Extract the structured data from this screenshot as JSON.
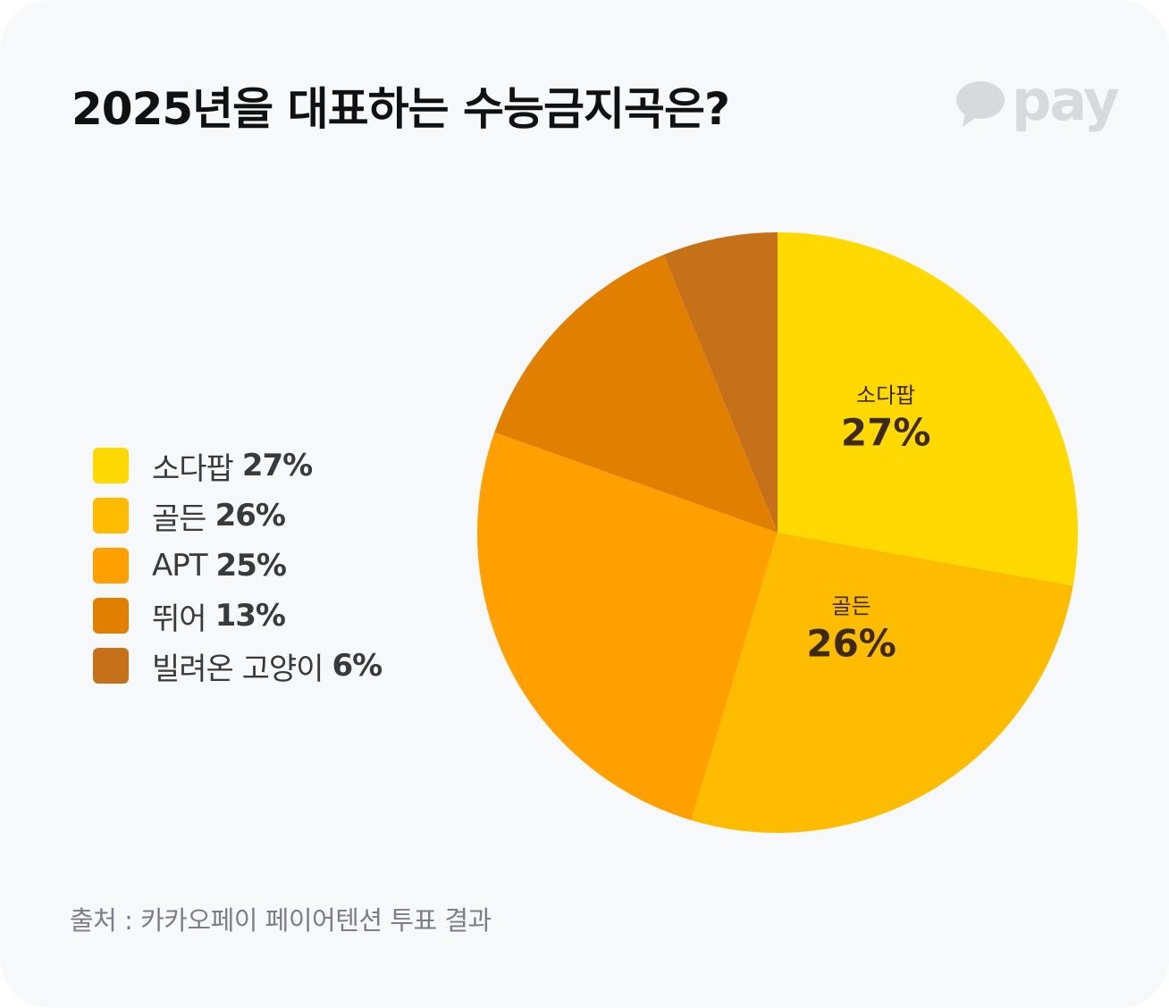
{
  "title": "2025년을 대표하는 수능금지곡은?",
  "logo": {
    "text": "pay",
    "icon": "speech-bubble-icon"
  },
  "source": "출처 : 카카오페이 페이어텐션 투표 결과",
  "colors": {
    "background": "#f7f8fa",
    "logo": "#d7d9dd"
  },
  "legend": [
    {
      "label": "소다팝",
      "value": "27%",
      "color": "#FFD900"
    },
    {
      "label": "골든",
      "value": "26%",
      "color": "#FDBC00"
    },
    {
      "label": "APT",
      "value": "25%",
      "color": "#FFA000"
    },
    {
      "label": "뛰어",
      "value": "13%",
      "color": "#E17F00"
    },
    {
      "label": "빌려온 고양이",
      "value": "6%",
      "color": "#C5711A"
    }
  ],
  "chart_data": {
    "type": "pie",
    "title": "2025년을 대표하는 수능금지곡은?",
    "categories": [
      "소다팝",
      "골든",
      "APT",
      "뛰어",
      "빌려온 고양이"
    ],
    "values": [
      27,
      26,
      25,
      13,
      6
    ],
    "unit": "%",
    "colors": [
      "#FFD900",
      "#FDBC00",
      "#FFA000",
      "#E17F00",
      "#C5711A"
    ],
    "start_angle": "12 o'clock",
    "direction": "clockwise",
    "slice_labels": [
      {
        "name": "소다팝",
        "value": "27%"
      },
      {
        "name": "골든",
        "value": "26%"
      }
    ],
    "legend_position": "left"
  }
}
